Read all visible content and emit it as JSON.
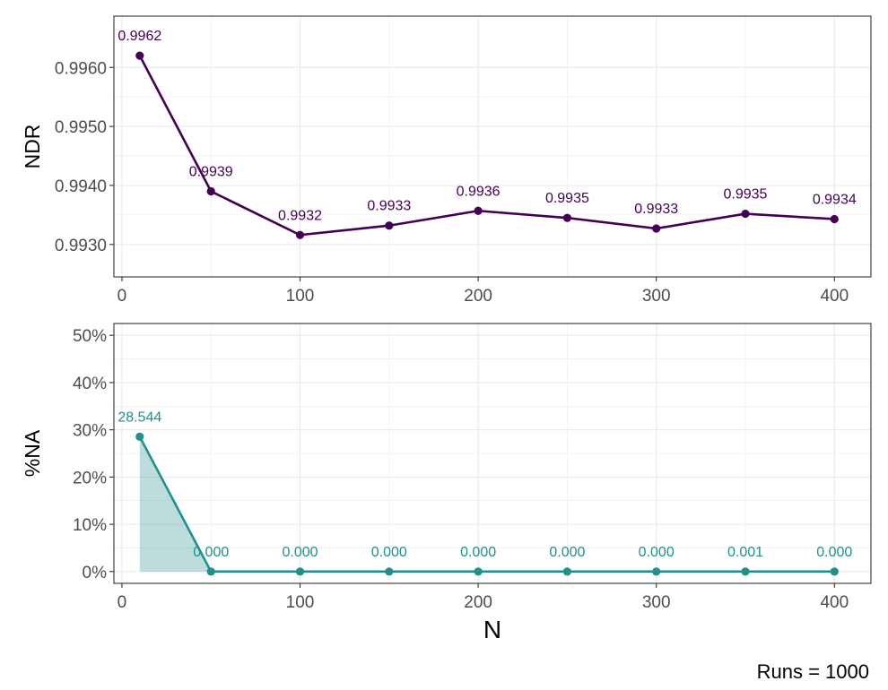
{
  "caption": "Runs = 1000",
  "colors": {
    "ndr": "#440154",
    "na": "#21908C",
    "na_fill": "#21908C",
    "grid": "#ebebeb",
    "border": "#333333"
  },
  "chart_data": [
    {
      "type": "line",
      "ylabel": "NDR",
      "xlabel": "",
      "x": [
        10,
        50,
        100,
        150,
        200,
        250,
        300,
        350,
        400
      ],
      "values": [
        0.9962,
        0.9939,
        0.99316,
        0.99332,
        0.99357,
        0.99345,
        0.99327,
        0.99352,
        0.99343
      ],
      "data_labels": [
        "0.9962",
        "0.9939",
        "0.9932",
        "0.9933",
        "0.9936",
        "0.9935",
        "0.9933",
        "0.9935",
        "0.9934"
      ],
      "xlim": [
        -4.5,
        420.5
      ],
      "ylim": [
        0.99245,
        0.99687
      ],
      "xticks": [
        0,
        100,
        200,
        300,
        400
      ],
      "xtick_labels": [
        "0",
        "100",
        "200",
        "300",
        "400"
      ],
      "yticks": [
        0.993,
        0.994,
        0.995,
        0.996
      ],
      "ytick_labels": [
        "0.9930",
        "0.9940",
        "0.9950",
        "0.9960"
      ],
      "grid": true,
      "color": "#440154"
    },
    {
      "type": "area",
      "ylabel": "%NA",
      "xlabel": "N",
      "x": [
        10,
        50,
        100,
        150,
        200,
        250,
        300,
        350,
        400
      ],
      "values": [
        28.544,
        0.0,
        0.0,
        0.0,
        0.0,
        0.0,
        0.0,
        0.001,
        0.0
      ],
      "data_labels": [
        "28.544",
        "0.000",
        "0.000",
        "0.000",
        "0.000",
        "0.000",
        "0.000",
        "0.001",
        "0.000"
      ],
      "xlim": [
        -4.5,
        420.5
      ],
      "ylim": [
        -2.5,
        52.5
      ],
      "xticks": [
        0,
        100,
        200,
        300,
        400
      ],
      "xtick_labels": [
        "0",
        "100",
        "200",
        "300",
        "400"
      ],
      "yticks": [
        0,
        10,
        20,
        30,
        40,
        50
      ],
      "ytick_labels": [
        "0%",
        "10%",
        "20%",
        "30%",
        "40%",
        "50%"
      ],
      "grid": true,
      "color": "#21908C"
    }
  ]
}
